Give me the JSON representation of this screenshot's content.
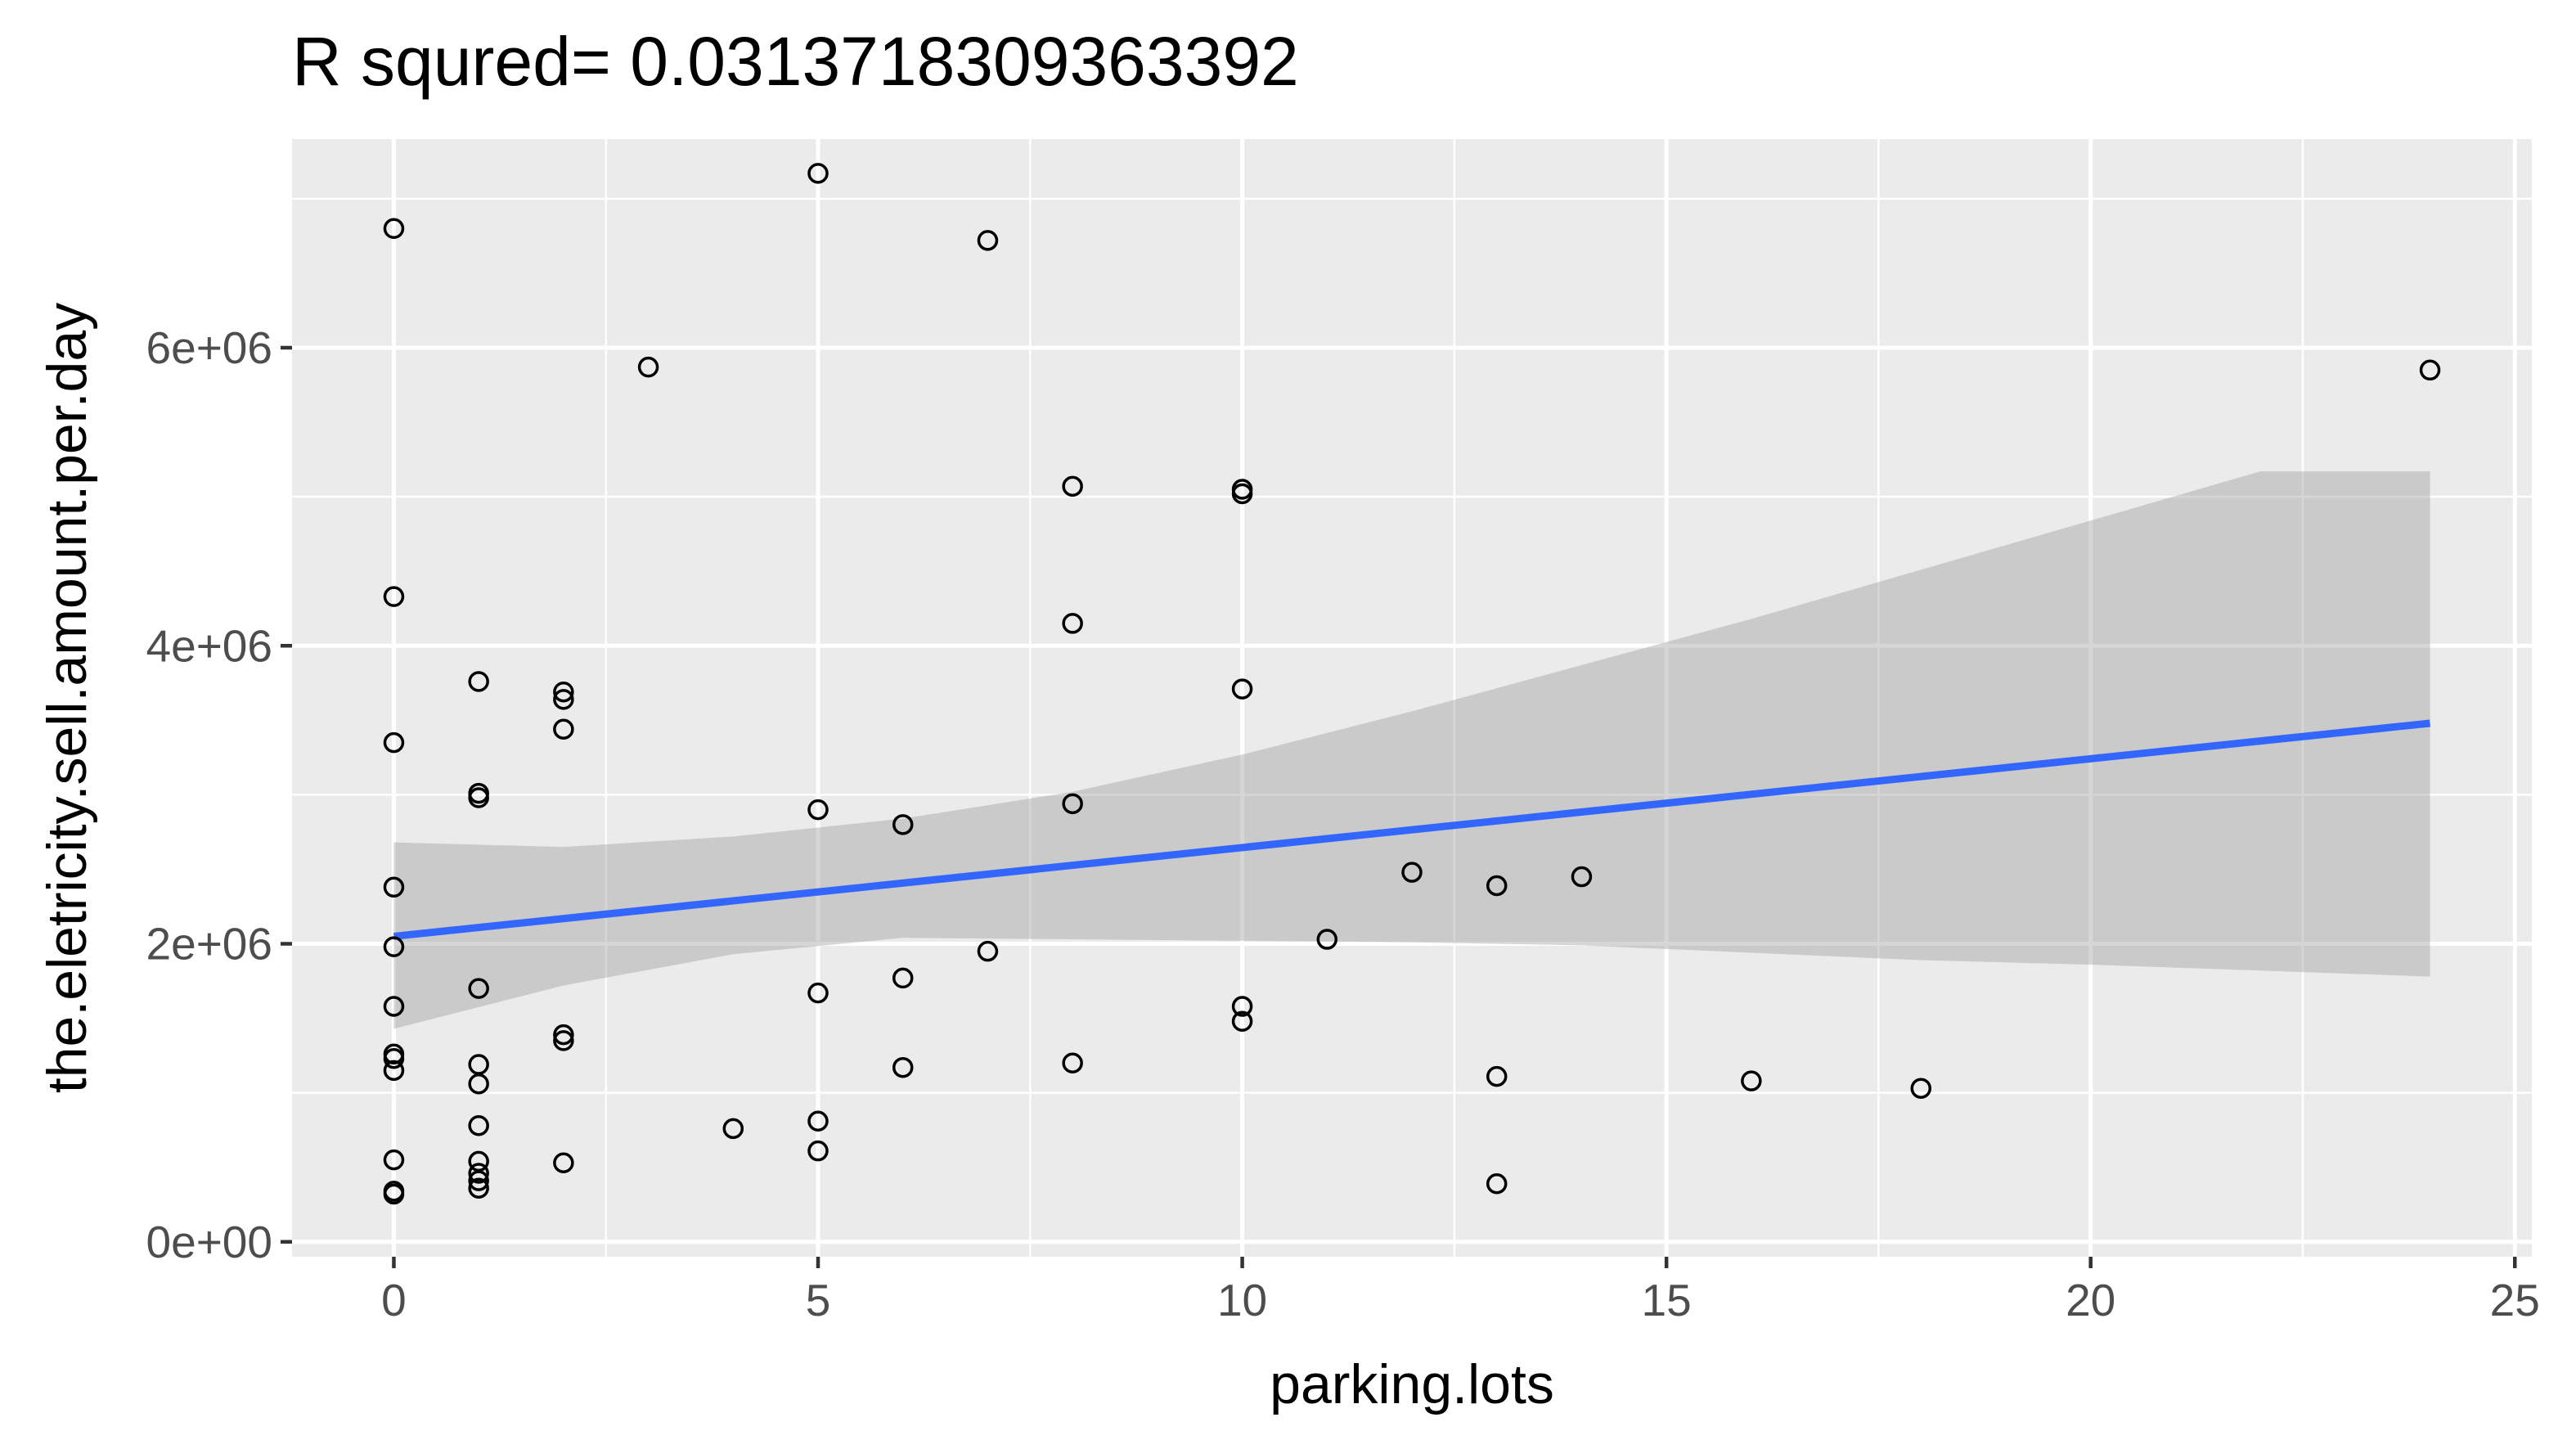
{
  "chart_data": {
    "type": "scatter",
    "title": "R squred= 0.0313718309363392",
    "xlabel": "parking.lots",
    "ylabel": "the.eletricity.sell.amount.per.day",
    "xlim": [
      -1.2,
      25.2
    ],
    "ylim": [
      -100000,
      7400000
    ],
    "x_ticks": [
      0,
      5,
      10,
      15,
      20,
      25
    ],
    "x_tick_labels": [
      "0",
      "5",
      "10",
      "15",
      "20",
      "25"
    ],
    "y_ticks": [
      0,
      2000000,
      4000000,
      6000000
    ],
    "y_tick_labels": [
      "0e+00",
      "2e+06",
      "4e+06",
      "6e+06"
    ],
    "grid": true,
    "colors": {
      "panel": "#ebebeb",
      "grid": "#ffffff",
      "points": "#000000",
      "fit_line": "#3366ff",
      "ribbon": "#999999"
    },
    "series": [
      {
        "type": "scatter",
        "points": [
          [
            0,
            6800000
          ],
          [
            0,
            4330000
          ],
          [
            0,
            3350000
          ],
          [
            0,
            2380000
          ],
          [
            0,
            1980000
          ],
          [
            0,
            1580000
          ],
          [
            0,
            1260000
          ],
          [
            0,
            1230000
          ],
          [
            0,
            1150000
          ],
          [
            0,
            550000
          ],
          [
            0,
            340000
          ],
          [
            0,
            320000
          ],
          [
            1,
            3760000
          ],
          [
            1,
            3010000
          ],
          [
            1,
            2980000
          ],
          [
            1,
            1700000
          ],
          [
            1,
            1190000
          ],
          [
            1,
            1060000
          ],
          [
            1,
            780000
          ],
          [
            1,
            540000
          ],
          [
            1,
            460000
          ],
          [
            1,
            410000
          ],
          [
            1,
            360000
          ],
          [
            2,
            3690000
          ],
          [
            2,
            3640000
          ],
          [
            2,
            3440000
          ],
          [
            2,
            1390000
          ],
          [
            2,
            1350000
          ],
          [
            2,
            530000
          ],
          [
            3,
            5870000
          ],
          [
            4,
            760000
          ],
          [
            5,
            7170000
          ],
          [
            5,
            2900000
          ],
          [
            5,
            1670000
          ],
          [
            5,
            810000
          ],
          [
            5,
            610000
          ],
          [
            6,
            2800000
          ],
          [
            6,
            1770000
          ],
          [
            6,
            1170000
          ],
          [
            7,
            6720000
          ],
          [
            7,
            1950000
          ],
          [
            8,
            5070000
          ],
          [
            8,
            4150000
          ],
          [
            8,
            2940000
          ],
          [
            8,
            1200000
          ],
          [
            10,
            5050000
          ],
          [
            10,
            5020000
          ],
          [
            10,
            3710000
          ],
          [
            10,
            1580000
          ],
          [
            10,
            1480000
          ],
          [
            11,
            2030000
          ],
          [
            12,
            2480000
          ],
          [
            13,
            2390000
          ],
          [
            13,
            1110000
          ],
          [
            13,
            390000
          ],
          [
            14,
            2450000
          ],
          [
            16,
            1080000
          ],
          [
            18,
            1030000
          ],
          [
            24,
            5850000
          ]
        ]
      },
      {
        "type": "line",
        "method": "lm",
        "x": [
          0,
          24
        ],
        "y": [
          2050000,
          3480000
        ]
      },
      {
        "type": "ribbon",
        "x": [
          0,
          2,
          4,
          6,
          8,
          10,
          12,
          14,
          16,
          18,
          20,
          22,
          24
        ],
        "lower": [
          1430000,
          1720000,
          1930000,
          2040000,
          2030000,
          2020000,
          2010000,
          1990000,
          1940000,
          1890000,
          1860000,
          1820000,
          1780000
        ],
        "upper": [
          2680000,
          2650000,
          2720000,
          2840000,
          3020000,
          3270000,
          3560000,
          3870000,
          4180000,
          4510000,
          4840000,
          5170000,
          5170000
        ]
      }
    ]
  }
}
